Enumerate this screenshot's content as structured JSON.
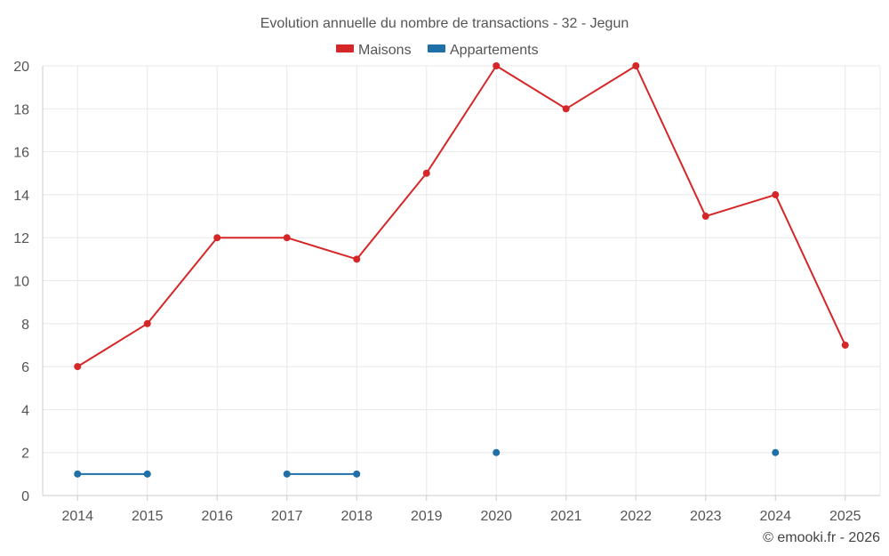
{
  "chart_data": {
    "type": "line",
    "title": "Evolution annuelle du nombre de transactions - 32 - Jegun",
    "categories": [
      "2014",
      "2015",
      "2016",
      "2017",
      "2018",
      "2019",
      "2020",
      "2021",
      "2022",
      "2023",
      "2024",
      "2025"
    ],
    "series": [
      {
        "name": "Maisons",
        "color": "#d62728",
        "values": [
          6,
          8,
          12,
          12,
          11,
          15,
          20,
          18,
          20,
          13,
          14,
          7
        ]
      },
      {
        "name": "Appartements",
        "color": "#1f6fa8",
        "values": [
          1,
          1,
          null,
          1,
          1,
          null,
          2,
          null,
          null,
          null,
          2,
          null
        ]
      }
    ],
    "ylim": [
      0,
      20
    ],
    "yticks": [
      0,
      2,
      4,
      6,
      8,
      10,
      12,
      14,
      16,
      18,
      20
    ],
    "grid": true,
    "legend": "top-center",
    "xlabel": "",
    "ylabel": ""
  },
  "credit": "© emooki.fr - 2026"
}
